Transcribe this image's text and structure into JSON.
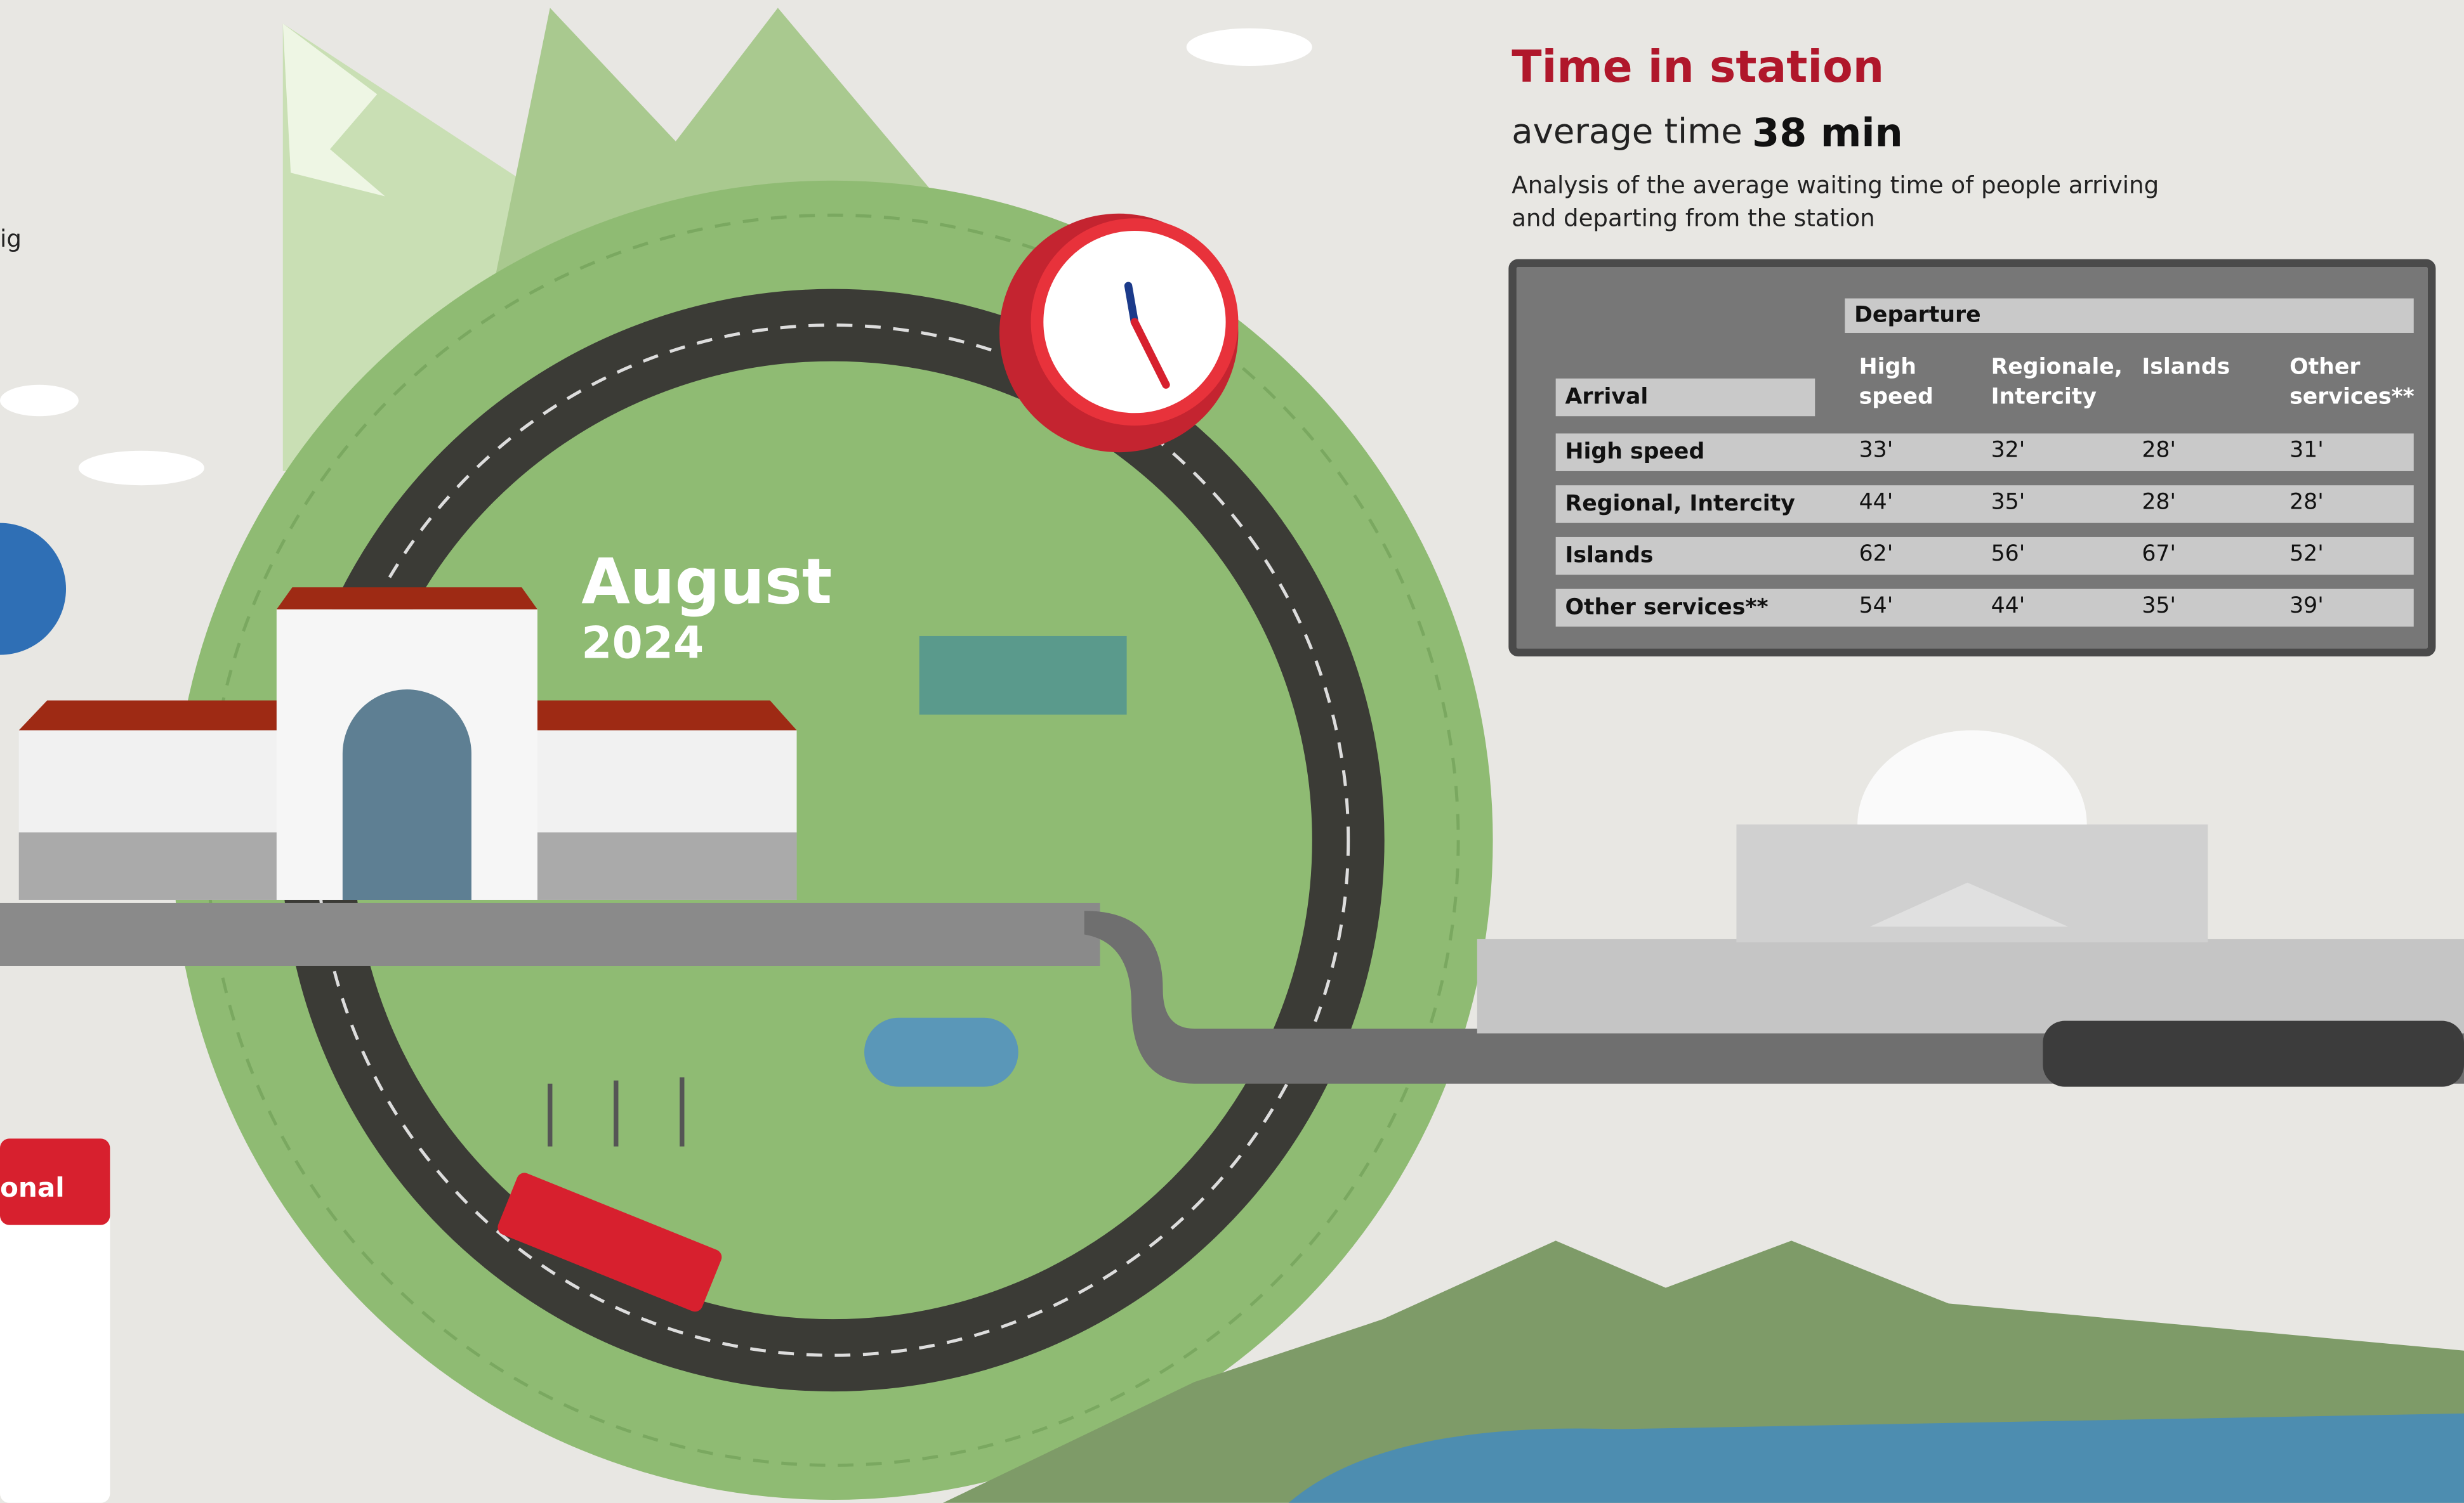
{
  "header": {
    "title": "Time in station",
    "average_label": "average time",
    "average_value": "38 min",
    "description": "Analysis of the average waiting time of people arriving and departing from the station"
  },
  "period": {
    "month": "August",
    "year": "2024"
  },
  "cropped_texts": {
    "left_top": "ig",
    "calendar": "onal"
  },
  "table": {
    "departure_header": "Departure",
    "arrival_header": "Arrival",
    "columns": [
      "High speed",
      "Regionale, Intercity",
      "Islands",
      "Other services**"
    ],
    "rows": [
      {
        "label": "High speed",
        "cells": [
          "33'",
          "32'",
          "28'",
          "31'"
        ]
      },
      {
        "label": "Regional, Intercity",
        "cells": [
          "44'",
          "35'",
          "28'",
          "28'"
        ]
      },
      {
        "label": "Islands",
        "cells": [
          "62'",
          "56'",
          "67'",
          "52'"
        ]
      },
      {
        "label": "Other services**",
        "cells": [
          "54'",
          "44'",
          "35'",
          "39'"
        ]
      }
    ]
  }
}
